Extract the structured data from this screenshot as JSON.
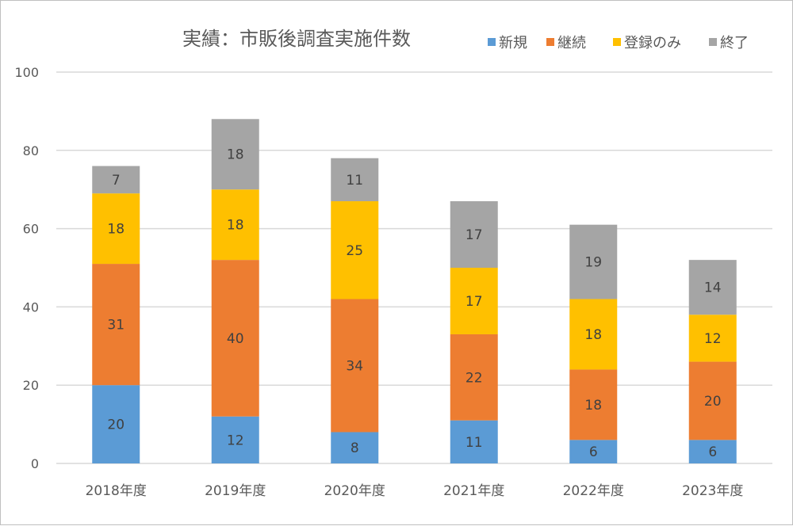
{
  "chart_data": {
    "type": "bar",
    "stacked": true,
    "title": "実績：市販後調査実施件数",
    "categories": [
      "2018年度",
      "2019年度",
      "2020年度",
      "2021年度",
      "2022年度",
      "2023年度"
    ],
    "series": [
      {
        "name": "新規",
        "color": "#5b9bd5",
        "values": [
          20,
          12,
          8,
          11,
          6,
          6
        ]
      },
      {
        "name": "継続",
        "color": "#ed7d31",
        "values": [
          31,
          40,
          34,
          22,
          18,
          20
        ]
      },
      {
        "name": "登録のみ",
        "color": "#ffc000",
        "values": [
          18,
          18,
          25,
          17,
          18,
          12
        ]
      },
      {
        "name": "終了",
        "color": "#a5a5a5",
        "values": [
          7,
          18,
          11,
          17,
          19,
          14
        ]
      }
    ],
    "ylim": [
      0,
      100
    ],
    "yticks": [
      "0",
      "20",
      "40",
      "60",
      "80",
      "100"
    ],
    "grid": true,
    "legend_position": "top-right",
    "xlabel": "",
    "ylabel": ""
  }
}
